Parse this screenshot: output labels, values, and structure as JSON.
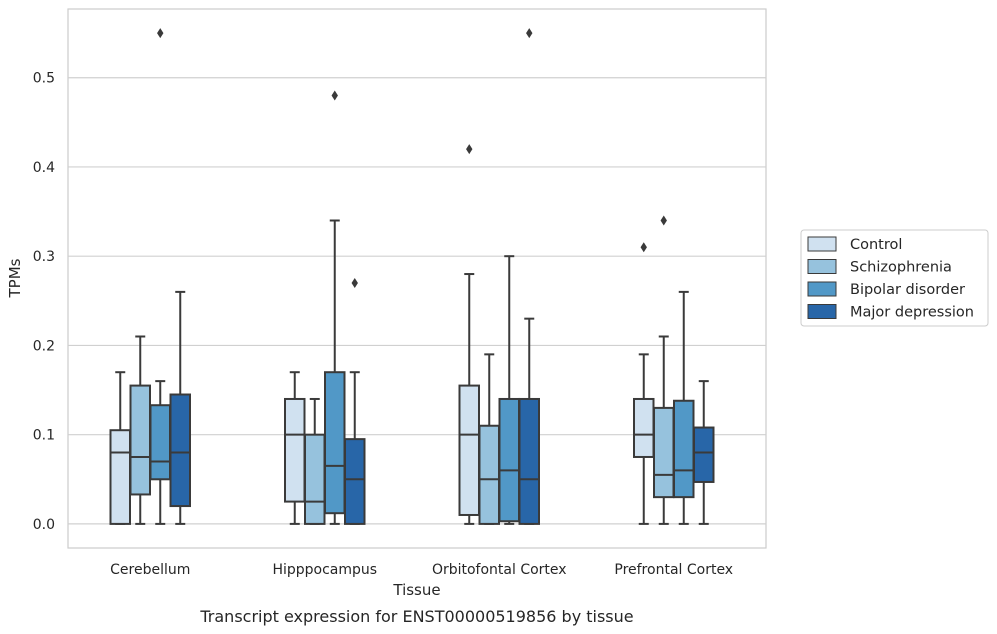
{
  "chart_data": {
    "type": "box",
    "caption": "Transcript expression for ENST00000519856 by tissue",
    "xlabel": "Tissue",
    "ylabel": "TPMs",
    "ylim": [
      -0.027,
      0.577
    ],
    "yticks": [
      "0.0",
      "0.1",
      "0.2",
      "0.3",
      "0.4",
      "0.5"
    ],
    "ytick_values": [
      0.0,
      0.1,
      0.2,
      0.3,
      0.4,
      0.5
    ],
    "grid": "horizontal",
    "legend_position": "outside-right",
    "categories": [
      "Cerebellum",
      "Hipppocampus",
      "Orbitofontal Cortex",
      "Prefrontal Cortex"
    ],
    "series": [
      {
        "name": "Control",
        "color": "#d0e1f0",
        "boxes": [
          {
            "whislo": 0.0,
            "q1": 0.0,
            "med": 0.08,
            "q3": 0.105,
            "whishi": 0.17,
            "fliers": []
          },
          {
            "whislo": 0.0,
            "q1": 0.025,
            "med": 0.1,
            "q3": 0.14,
            "whishi": 0.17,
            "fliers": []
          },
          {
            "whislo": 0.0,
            "q1": 0.01,
            "med": 0.1,
            "q3": 0.155,
            "whishi": 0.28,
            "fliers": [
              0.42
            ]
          },
          {
            "whislo": 0.0,
            "q1": 0.075,
            "med": 0.1,
            "q3": 0.14,
            "whishi": 0.19,
            "fliers": [
              0.31
            ]
          }
        ]
      },
      {
        "name": "Schizophrenia",
        "color": "#96c2dd",
        "boxes": [
          {
            "whislo": 0.0,
            "q1": 0.033,
            "med": 0.075,
            "q3": 0.155,
            "whishi": 0.21,
            "fliers": []
          },
          {
            "whislo": 0.0,
            "q1": 0.0,
            "med": 0.025,
            "q3": 0.1,
            "whishi": 0.14,
            "fliers": []
          },
          {
            "whislo": 0.0,
            "q1": 0.0,
            "med": 0.05,
            "q3": 0.11,
            "whishi": 0.19,
            "fliers": []
          },
          {
            "whislo": 0.0,
            "q1": 0.03,
            "med": 0.055,
            "q3": 0.13,
            "whishi": 0.21,
            "fliers": [
              0.34
            ]
          }
        ]
      },
      {
        "name": "Bipolar disorder",
        "color": "#5198c7",
        "boxes": [
          {
            "whislo": 0.0,
            "q1": 0.05,
            "med": 0.07,
            "q3": 0.133,
            "whishi": 0.16,
            "fliers": [
              0.55
            ]
          },
          {
            "whislo": 0.0,
            "q1": 0.012,
            "med": 0.065,
            "q3": 0.17,
            "whishi": 0.34,
            "fliers": [
              0.48
            ]
          },
          {
            "whislo": 0.0,
            "q1": 0.003,
            "med": 0.06,
            "q3": 0.14,
            "whishi": 0.3,
            "fliers": []
          },
          {
            "whislo": 0.0,
            "q1": 0.03,
            "med": 0.06,
            "q3": 0.138,
            "whishi": 0.26,
            "fliers": []
          }
        ]
      },
      {
        "name": "Major depression",
        "color": "#2866a8",
        "boxes": [
          {
            "whislo": 0.0,
            "q1": 0.02,
            "med": 0.08,
            "q3": 0.145,
            "whishi": 0.26,
            "fliers": []
          },
          {
            "whislo": 0.0,
            "q1": 0.0,
            "med": 0.05,
            "q3": 0.095,
            "whishi": 0.17,
            "fliers": [
              0.27
            ]
          },
          {
            "whislo": 0.0,
            "q1": 0.0,
            "med": 0.05,
            "q3": 0.14,
            "whishi": 0.23,
            "fliers": [
              0.55
            ]
          },
          {
            "whislo": 0.0,
            "q1": 0.047,
            "med": 0.08,
            "q3": 0.108,
            "whishi": 0.16,
            "fliers": []
          }
        ]
      }
    ]
  }
}
